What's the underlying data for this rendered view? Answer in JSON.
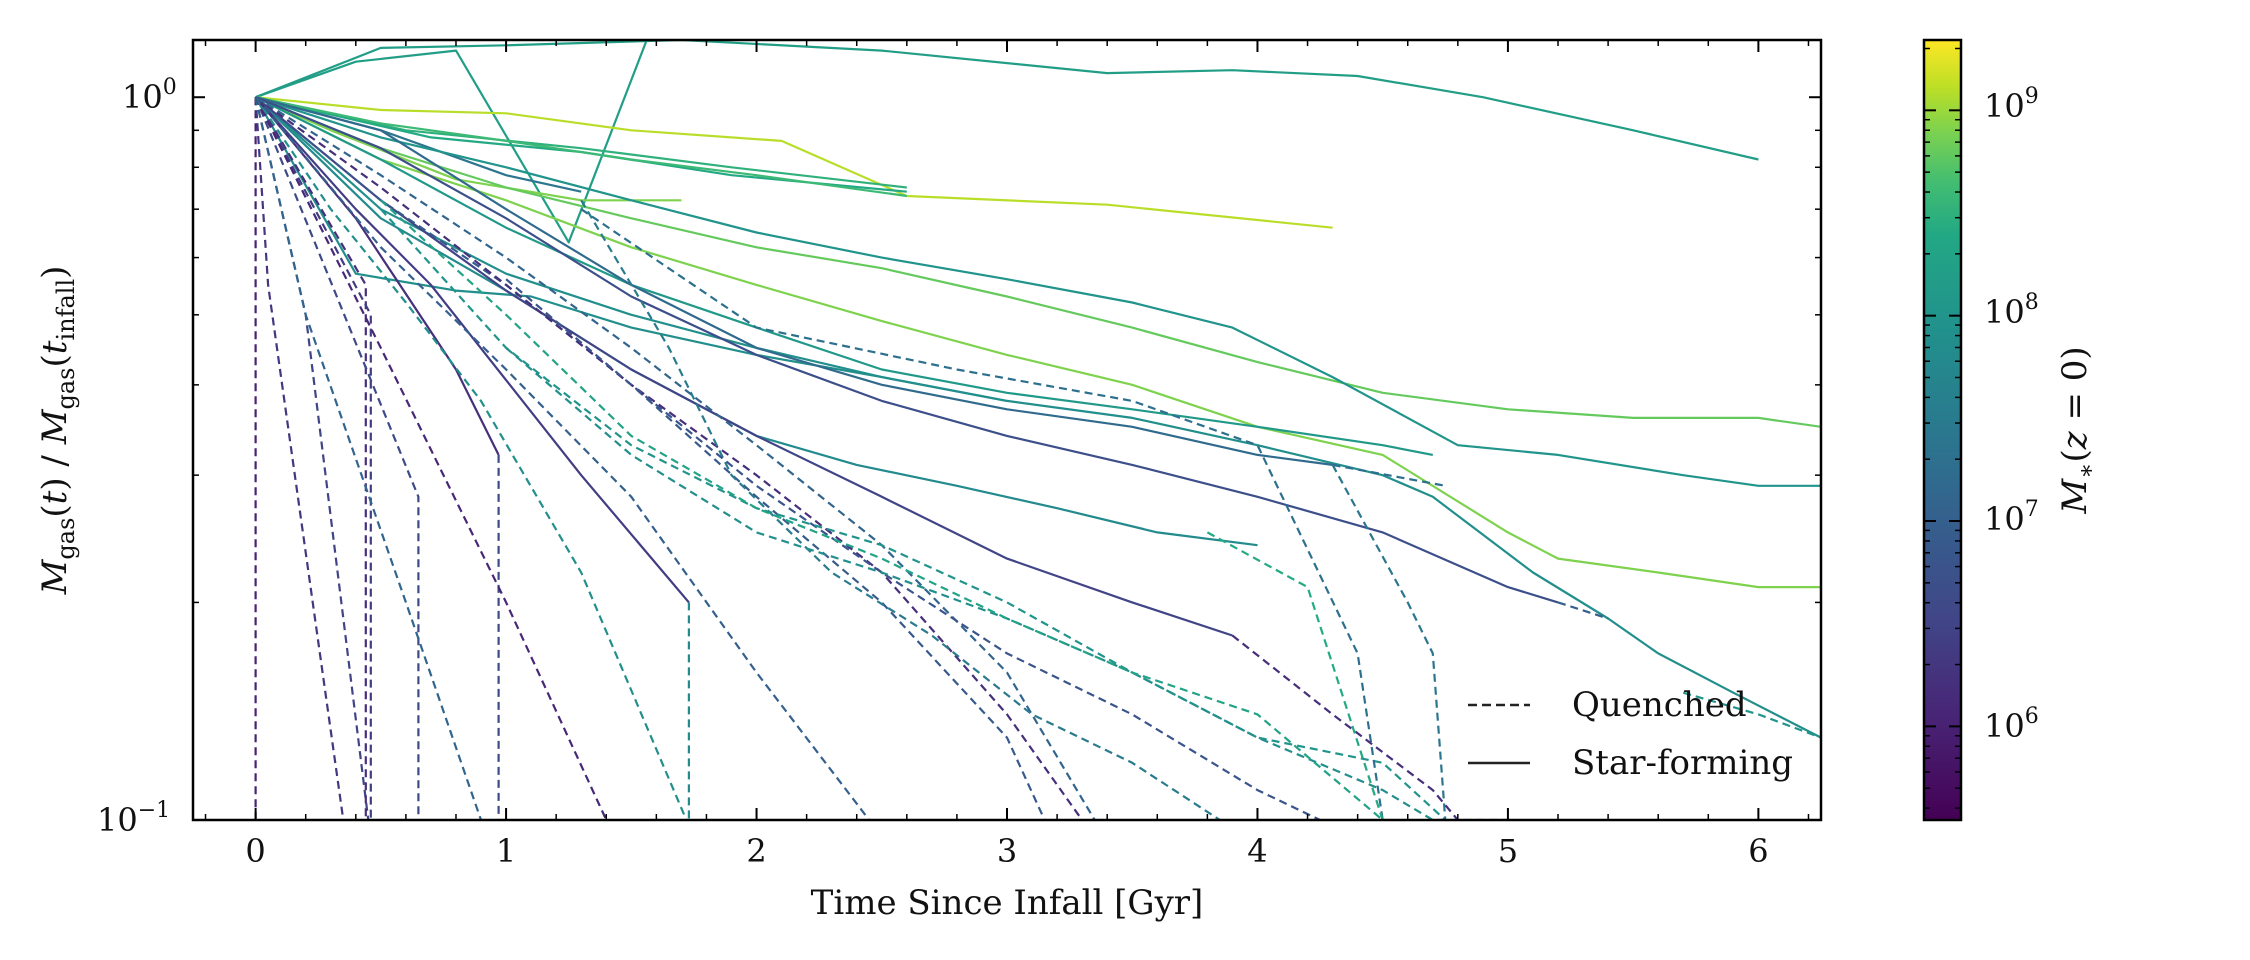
{
  "chart_data": {
    "type": "line",
    "xlabel": "Time Since Infall [Gyr]",
    "ylabel": "M_gas(t) / M_gas(t_infall)",
    "yscale": "log",
    "xlim": [
      -0.25,
      6.25
    ],
    "ylim": [
      0.1,
      1.2
    ],
    "x_ticks": [
      0,
      1,
      2,
      3,
      4,
      5,
      6
    ],
    "x_tick_labels": [
      "0",
      "1",
      "2",
      "3",
      "4",
      "5",
      "6"
    ],
    "y_tick_labels": [
      "10^0",
      "10^-1"
    ],
    "colorbar": {
      "label": "M_*(z=0)",
      "scale": "log",
      "colormap": "viridis",
      "range": [
        350000.0,
        2200000000.0
      ],
      "tick_labels": [
        "10^6",
        "10^7",
        "10^8",
        "10^9"
      ]
    },
    "legend": {
      "position": "lower-right",
      "entries": [
        {
          "label": "Quenched",
          "style": "dashed"
        },
        {
          "label": "Star-forming",
          "style": "solid"
        }
      ]
    },
    "series": [
      {
        "logm": 8.2,
        "style": "solid",
        "x": [
          0,
          0.5,
          1.0,
          1.7,
          2.5,
          3.4,
          3.9,
          4.4,
          4.9,
          5.5,
          6.0
        ],
        "y": [
          1.0,
          1.17,
          1.18,
          1.2,
          1.16,
          1.08,
          1.09,
          1.07,
          1.0,
          0.9,
          0.82
        ]
      },
      {
        "logm": 8.2,
        "style": "solid",
        "x": [
          0,
          0.4,
          0.8,
          1.25,
          1.6
        ],
        "y": [
          1.0,
          1.12,
          1.16,
          0.63,
          1.3
        ]
      },
      {
        "logm": 9.1,
        "style": "solid",
        "x": [
          0,
          0.5,
          1.0,
          1.5,
          2.1,
          2.6,
          3.4,
          4.3
        ],
        "y": [
          1.0,
          0.96,
          0.95,
          0.9,
          0.87,
          0.73,
          0.71,
          0.66
        ]
      },
      {
        "logm": 8.5,
        "style": "solid",
        "x": [
          0,
          0.6,
          1.3,
          1.9,
          2.6
        ],
        "y": [
          1.0,
          0.9,
          0.85,
          0.8,
          0.75
        ]
      },
      {
        "logm": 8.4,
        "style": "solid",
        "x": [
          0,
          0.7,
          1.3,
          1.9,
          2.6
        ],
        "y": [
          1.0,
          0.88,
          0.84,
          0.78,
          0.74
        ]
      },
      {
        "logm": 8.9,
        "style": "solid",
        "x": [
          0,
          0.3,
          0.8,
          1.3,
          1.7
        ],
        "y": [
          1.0,
          0.9,
          0.77,
          0.72,
          0.72
        ]
      },
      {
        "logm": 8.6,
        "style": "solid",
        "x": [
          0,
          0.5,
          1.0,
          1.5,
          2.0,
          2.6
        ],
        "y": [
          1.0,
          0.92,
          0.87,
          0.82,
          0.78,
          0.73
        ]
      },
      {
        "logm": 7.4,
        "style": "solid",
        "x": [
          0,
          0.5,
          1.0,
          1.3
        ],
        "y": [
          1.0,
          0.9,
          0.78,
          0.74
        ]
      },
      {
        "logm": 8.8,
        "style": "solid",
        "x": [
          0,
          0.5,
          1.0,
          1.5,
          2.0,
          2.5,
          3.0,
          3.5,
          4.0,
          4.5,
          5.0,
          5.5,
          6.0,
          6.25
        ],
        "y": [
          1.0,
          0.85,
          0.75,
          0.68,
          0.62,
          0.58,
          0.53,
          0.48,
          0.43,
          0.39,
          0.37,
          0.36,
          0.36,
          0.35
        ]
      },
      {
        "logm": 8.9,
        "style": "solid",
        "x": [
          0,
          0.5,
          1.0,
          1.5,
          2.0,
          2.5,
          3.0,
          3.5,
          4.0,
          4.5,
          5.0,
          5.2,
          5.6,
          6.0,
          6.25
        ],
        "y": [
          1.0,
          0.82,
          0.72,
          0.62,
          0.55,
          0.49,
          0.44,
          0.4,
          0.35,
          0.32,
          0.25,
          0.23,
          0.22,
          0.21,
          0.21
        ]
      },
      {
        "logm": 8.0,
        "style": "solid",
        "x": [
          0,
          0.5,
          1.0,
          1.5,
          2.0,
          2.5,
          3.0,
          3.5,
          3.9,
          4.3,
          4.8,
          5.2,
          5.7,
          6.0,
          6.25
        ],
        "y": [
          1.0,
          0.88,
          0.8,
          0.72,
          0.65,
          0.6,
          0.56,
          0.52,
          0.48,
          0.41,
          0.33,
          0.32,
          0.3,
          0.29,
          0.29
        ]
      },
      {
        "logm": 7.9,
        "style": "solid",
        "x": [
          0,
          0.5,
          1.0,
          1.5,
          2.0,
          2.5,
          3.0,
          3.5,
          4.0,
          4.5,
          4.7,
          5.1,
          5.4,
          5.6,
          5.9,
          6.25
        ],
        "y": [
          1.0,
          0.7,
          0.57,
          0.5,
          0.45,
          0.41,
          0.38,
          0.36,
          0.33,
          0.3,
          0.28,
          0.22,
          0.19,
          0.17,
          0.15,
          0.13
        ]
      },
      {
        "logm": 8.1,
        "style": "solid",
        "x": [
          0,
          0.5,
          1.0,
          1.5,
          2.0,
          2.5,
          3.0,
          3.5,
          4.0,
          4.5,
          4.7
        ],
        "y": [
          1.0,
          0.82,
          0.66,
          0.55,
          0.48,
          0.42,
          0.39,
          0.37,
          0.35,
          0.33,
          0.32
        ]
      },
      {
        "logm": 7.8,
        "style": "solid",
        "x": [
          0,
          0.5,
          1.0,
          1.5,
          2.0,
          2.4,
          2.8,
          3.2,
          3.6,
          4.0
        ],
        "y": [
          1.0,
          0.68,
          0.54,
          0.42,
          0.34,
          0.31,
          0.29,
          0.27,
          0.25,
          0.24
        ]
      },
      {
        "logm": 7.9,
        "style": "solid",
        "x": [
          0,
          0.4,
          0.8,
          1.1,
          1.5,
          2.0,
          2.5,
          3.0
        ],
        "y": [
          1.0,
          0.57,
          0.54,
          0.53,
          0.48,
          0.44,
          0.41,
          0.38
        ]
      },
      {
        "logm": 7.2,
        "style": "solid",
        "x": [
          0,
          0.5,
          1.0,
          1.5,
          2.0,
          2.5,
          3.0,
          3.5,
          4.0,
          4.3
        ],
        "y": [
          1.0,
          0.9,
          0.7,
          0.55,
          0.45,
          0.4,
          0.37,
          0.35,
          0.32,
          0.31
        ]
      },
      {
        "logm": 6.7,
        "style": "solid",
        "x": [
          0,
          0.5,
          1.0,
          1.5,
          2.0,
          2.5,
          3.0,
          3.5,
          4.0,
          4.5,
          5.0,
          5.2
        ],
        "y": [
          1.0,
          0.85,
          0.68,
          0.53,
          0.44,
          0.38,
          0.34,
          0.31,
          0.28,
          0.25,
          0.21,
          0.2
        ]
      },
      {
        "logm": 6.5,
        "style": "solid",
        "x": [
          0,
          0.5,
          1.0,
          1.5,
          2.0,
          2.5,
          3.0,
          3.5,
          3.9
        ],
        "y": [
          1.0,
          0.72,
          0.54,
          0.42,
          0.34,
          0.28,
          0.23,
          0.2,
          0.18
        ]
      },
      {
        "logm": 6.4,
        "style": "solid",
        "x": [
          0,
          0.4,
          0.7,
          1.3,
          1.73
        ],
        "y": [
          1.0,
          0.7,
          0.55,
          0.3,
          0.2
        ]
      },
      {
        "logm": 6.2,
        "style": "solid",
        "x": [
          0,
          0.4,
          0.8,
          0.97
        ],
        "y": [
          1.0,
          0.68,
          0.42,
          0.32
        ]
      },
      {
        "logm": 7.3,
        "style": "dashed",
        "x": [
          4.3,
          4.75
        ],
        "y": [
          0.31,
          0.29
        ]
      },
      {
        "logm": 7.0,
        "style": "dashed",
        "x": [
          5.2,
          5.4
        ],
        "y": [
          0.2,
          0.19
        ]
      },
      {
        "logm": 6.0,
        "style": "dashed",
        "x": [
          0,
          0,
          0
        ],
        "y": [
          1.0,
          0.45,
          0.1
        ]
      },
      {
        "logm": 6.3,
        "style": "dashed",
        "x": [
          0,
          0.05,
          0.35
        ],
        "y": [
          1.0,
          0.55,
          0.1
        ]
      },
      {
        "logm": 6.5,
        "style": "dashed",
        "x": [
          0,
          0.2,
          0.45
        ],
        "y": [
          1.0,
          0.5,
          0.1
        ]
      },
      {
        "logm": 6.2,
        "style": "dashed",
        "x": [
          0,
          0.44,
          0.44
        ],
        "y": [
          1.0,
          0.55,
          0.1
        ]
      },
      {
        "logm": 6.4,
        "style": "dashed",
        "x": [
          0,
          0.46,
          0.46
        ],
        "y": [
          1.0,
          0.5,
          0.1
        ]
      },
      {
        "logm": 6.6,
        "style": "dashed",
        "x": [
          0,
          0.65,
          0.65
        ],
        "y": [
          1.0,
          0.28,
          0.1
        ]
      },
      {
        "logm": 6.6,
        "style": "dashed",
        "x": [
          0.97,
          0.97
        ],
        "y": [
          0.32,
          0.1
        ]
      },
      {
        "logm": 7.1,
        "style": "dashed",
        "x": [
          0,
          0.2,
          0.6,
          0.9
        ],
        "y": [
          1.0,
          0.5,
          0.2,
          0.1
        ]
      },
      {
        "logm": 6.1,
        "style": "dashed",
        "x": [
          0,
          0.5,
          1.0,
          1.4
        ],
        "y": [
          1.0,
          0.45,
          0.2,
          0.1
        ]
      },
      {
        "logm": 7.9,
        "style": "dashed",
        "x": [
          0,
          0.3,
          0.6,
          0.9,
          1.3,
          1.72
        ],
        "y": [
          1.0,
          0.7,
          0.52,
          0.38,
          0.22,
          0.1
        ]
      },
      {
        "logm": 7.8,
        "style": "dashed",
        "x": [
          1.73,
          1.73
        ],
        "y": [
          0.2,
          0.1
        ]
      },
      {
        "logm": 7.0,
        "style": "dashed",
        "x": [
          0,
          0.5,
          1.0,
          1.5,
          2.0,
          2.45
        ],
        "y": [
          1.0,
          0.62,
          0.42,
          0.28,
          0.16,
          0.1
        ]
      },
      {
        "logm": 6.9,
        "style": "dashed",
        "x": [
          0,
          0.5,
          1.0,
          1.5,
          2.0,
          2.5,
          3.0,
          3.15
        ],
        "y": [
          1.0,
          0.72,
          0.55,
          0.4,
          0.28,
          0.2,
          0.13,
          0.1
        ]
      },
      {
        "logm": 6.2,
        "style": "dashed",
        "x": [
          0,
          0.5,
          1.0,
          1.5,
          2.0,
          2.5,
          3.0,
          3.3
        ],
        "y": [
          1.0,
          0.75,
          0.55,
          0.4,
          0.3,
          0.22,
          0.14,
          0.1
        ]
      },
      {
        "logm": 7.1,
        "style": "dashed",
        "x": [
          0,
          0.5,
          1.0,
          1.5,
          2.0,
          2.5,
          3.0,
          3.35
        ],
        "y": [
          1.0,
          0.78,
          0.6,
          0.45,
          0.33,
          0.24,
          0.16,
          0.1
        ]
      },
      {
        "logm": 7.5,
        "style": "dashed",
        "x": [
          1.3,
          1.65,
          1.9,
          2.3,
          2.7,
          3.1,
          3.5,
          3.85
        ],
        "y": [
          0.72,
          0.45,
          0.3,
          0.22,
          0.18,
          0.14,
          0.12,
          0.1
        ]
      },
      {
        "logm": 6.8,
        "style": "dashed",
        "x": [
          1.0,
          1.5,
          2.0,
          2.5,
          3.0,
          3.5,
          4.0,
          4.25
        ],
        "y": [
          0.56,
          0.4,
          0.29,
          0.22,
          0.17,
          0.14,
          0.11,
          0.1
        ]
      },
      {
        "logm": 8.0,
        "style": "dashed",
        "x": [
          0.5,
          1.0,
          1.5,
          2.0,
          2.5,
          3.0,
          3.5,
          4.0,
          4.5,
          4.75
        ],
        "y": [
          0.7,
          0.45,
          0.33,
          0.27,
          0.24,
          0.2,
          0.16,
          0.13,
          0.12,
          0.1
        ]
      },
      {
        "logm": 7.9,
        "style": "dashed",
        "x": [
          1.0,
          1.5,
          2.0,
          2.5,
          3.0,
          3.5,
          4.0,
          4.5,
          4.7,
          5.0
        ],
        "y": [
          0.45,
          0.32,
          0.25,
          0.22,
          0.19,
          0.16,
          0.13,
          0.11,
          0.1,
          0.1
        ]
      },
      {
        "logm": 8.3,
        "style": "dashed",
        "x": [
          0.5,
          1.0,
          1.5,
          2.0,
          2.5,
          3.0,
          3.5,
          4.0,
          4.5
        ],
        "y": [
          0.72,
          0.5,
          0.34,
          0.27,
          0.23,
          0.19,
          0.16,
          0.14,
          0.1
        ]
      },
      {
        "logm": 7.3,
        "style": "dashed",
        "x": [
          1.3,
          2.0,
          2.8,
          3.5,
          4.0,
          4.4,
          4.5
        ],
        "y": [
          0.7,
          0.48,
          0.42,
          0.38,
          0.33,
          0.17,
          0.1
        ]
      },
      {
        "logm": 7.4,
        "style": "dashed",
        "x": [
          4.3,
          4.6,
          4.7,
          4.75
        ],
        "y": [
          0.31,
          0.2,
          0.17,
          0.1
        ]
      },
      {
        "logm": 6.2,
        "style": "dashed",
        "x": [
          3.9,
          4.3,
          4.7,
          4.8
        ],
        "y": [
          0.18,
          0.14,
          0.11,
          0.1
        ]
      },
      {
        "logm": 8.4,
        "style": "dashed",
        "x": [
          3.8,
          4.2,
          4.5
        ],
        "y": [
          0.25,
          0.21,
          0.1
        ]
      },
      {
        "logm": 8.0,
        "style": "dashed",
        "x": [
          5.7,
          6.0,
          6.25
        ],
        "y": [
          0.15,
          0.14,
          0.13
        ]
      }
    ]
  }
}
